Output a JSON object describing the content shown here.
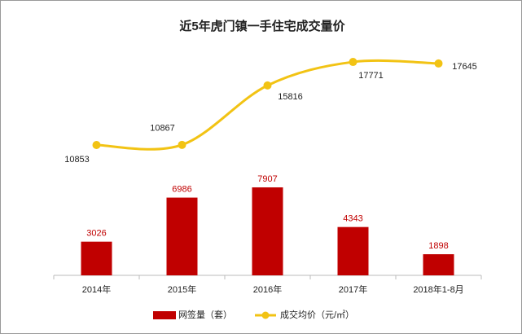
{
  "chart_data": {
    "type": "bar-line",
    "title": "近5年虎门镇一手住宅成交量价",
    "categories": [
      "2014年",
      "2015年",
      "2016年",
      "2017年",
      "2018年1-8月"
    ],
    "series": [
      {
        "name": "网签量（套）",
        "type": "bar",
        "color": "#c00000",
        "values": [
          3026,
          6986,
          7907,
          4343,
          1898
        ]
      },
      {
        "name": "成交均价（元/㎡）",
        "type": "line",
        "axis": "y2",
        "color": "#f2c314",
        "values": [
          10853,
          10867,
          15816,
          17771,
          17645
        ]
      }
    ],
    "legend": "bottom"
  }
}
